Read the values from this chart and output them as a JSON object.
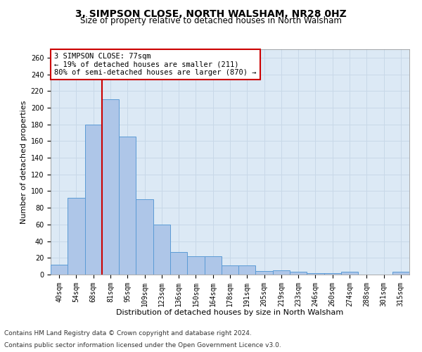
{
  "title1": "3, SIMPSON CLOSE, NORTH WALSHAM, NR28 0HZ",
  "title2": "Size of property relative to detached houses in North Walsham",
  "xlabel": "Distribution of detached houses by size in North Walsham",
  "ylabel": "Number of detached properties",
  "categories": [
    "40sqm",
    "54sqm",
    "68sqm",
    "81sqm",
    "95sqm",
    "109sqm",
    "123sqm",
    "136sqm",
    "150sqm",
    "164sqm",
    "178sqm",
    "191sqm",
    "205sqm",
    "219sqm",
    "233sqm",
    "246sqm",
    "260sqm",
    "274sqm",
    "288sqm",
    "301sqm",
    "315sqm"
  ],
  "values": [
    12,
    92,
    180,
    210,
    165,
    90,
    60,
    27,
    22,
    22,
    11,
    11,
    4,
    5,
    3,
    2,
    2,
    3,
    0,
    0,
    3
  ],
  "bar_color": "#aec6e8",
  "bar_edge_color": "#5b9bd5",
  "vline_color": "#cc0000",
  "annotation_text": "3 SIMPSON CLOSE: 77sqm\n← 19% of detached houses are smaller (211)\n80% of semi-detached houses are larger (870) →",
  "annotation_box_color": "#ffffff",
  "annotation_box_edge": "#cc0000",
  "ylim": [
    0,
    270
  ],
  "yticks": [
    0,
    20,
    40,
    60,
    80,
    100,
    120,
    140,
    160,
    180,
    200,
    220,
    240,
    260
  ],
  "grid_color": "#c8d8e8",
  "bg_color": "#dce9f5",
  "footer1": "Contains HM Land Registry data © Crown copyright and database right 2024.",
  "footer2": "Contains public sector information licensed under the Open Government Licence v3.0.",
  "title1_fontsize": 10,
  "title2_fontsize": 8.5,
  "xlabel_fontsize": 8,
  "ylabel_fontsize": 8,
  "tick_fontsize": 7,
  "footer_fontsize": 6.5,
  "ann_fontsize": 7.5
}
